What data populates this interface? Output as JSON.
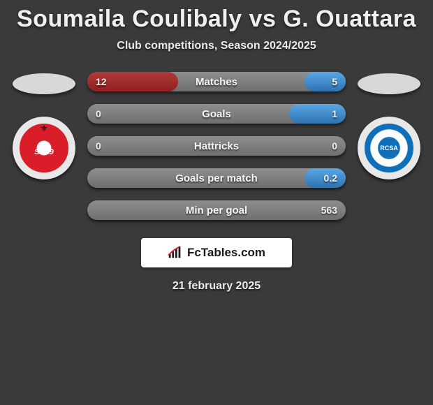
{
  "title": "Soumaila Coulibaly vs G. Ouattara",
  "subtitle": "Club competitions, Season 2024/2025",
  "date": "21 february 2025",
  "logo_text": "FcTables.com",
  "colors": {
    "background": "#3a3a3a",
    "bar_base": "#7d7d7d",
    "left_fill": "#a02a2a",
    "right_fill": "#3e84c4",
    "text": "#f0f0f0"
  },
  "left": {
    "crest_text": "SB29",
    "crest_primary": "#d91e2a",
    "crest_inner": "#ffffff"
  },
  "right": {
    "crest_text": "RCSA",
    "crest_primary": "#0f6fb8",
    "crest_inner": "#ffffff"
  },
  "bars": [
    {
      "label": "Matches",
      "left": "12",
      "right": "5",
      "left_pct": 35,
      "right_pct": 16
    },
    {
      "label": "Goals",
      "left": "0",
      "right": "1",
      "left_pct": 0,
      "right_pct": 22
    },
    {
      "label": "Hattricks",
      "left": "0",
      "right": "0",
      "left_pct": 0,
      "right_pct": 0
    },
    {
      "label": "Goals per match",
      "left": "",
      "right": "0.2",
      "left_pct": 0,
      "right_pct": 16
    },
    {
      "label": "Min per goal",
      "left": "",
      "right": "563",
      "left_pct": 0,
      "right_pct": 0
    }
  ]
}
